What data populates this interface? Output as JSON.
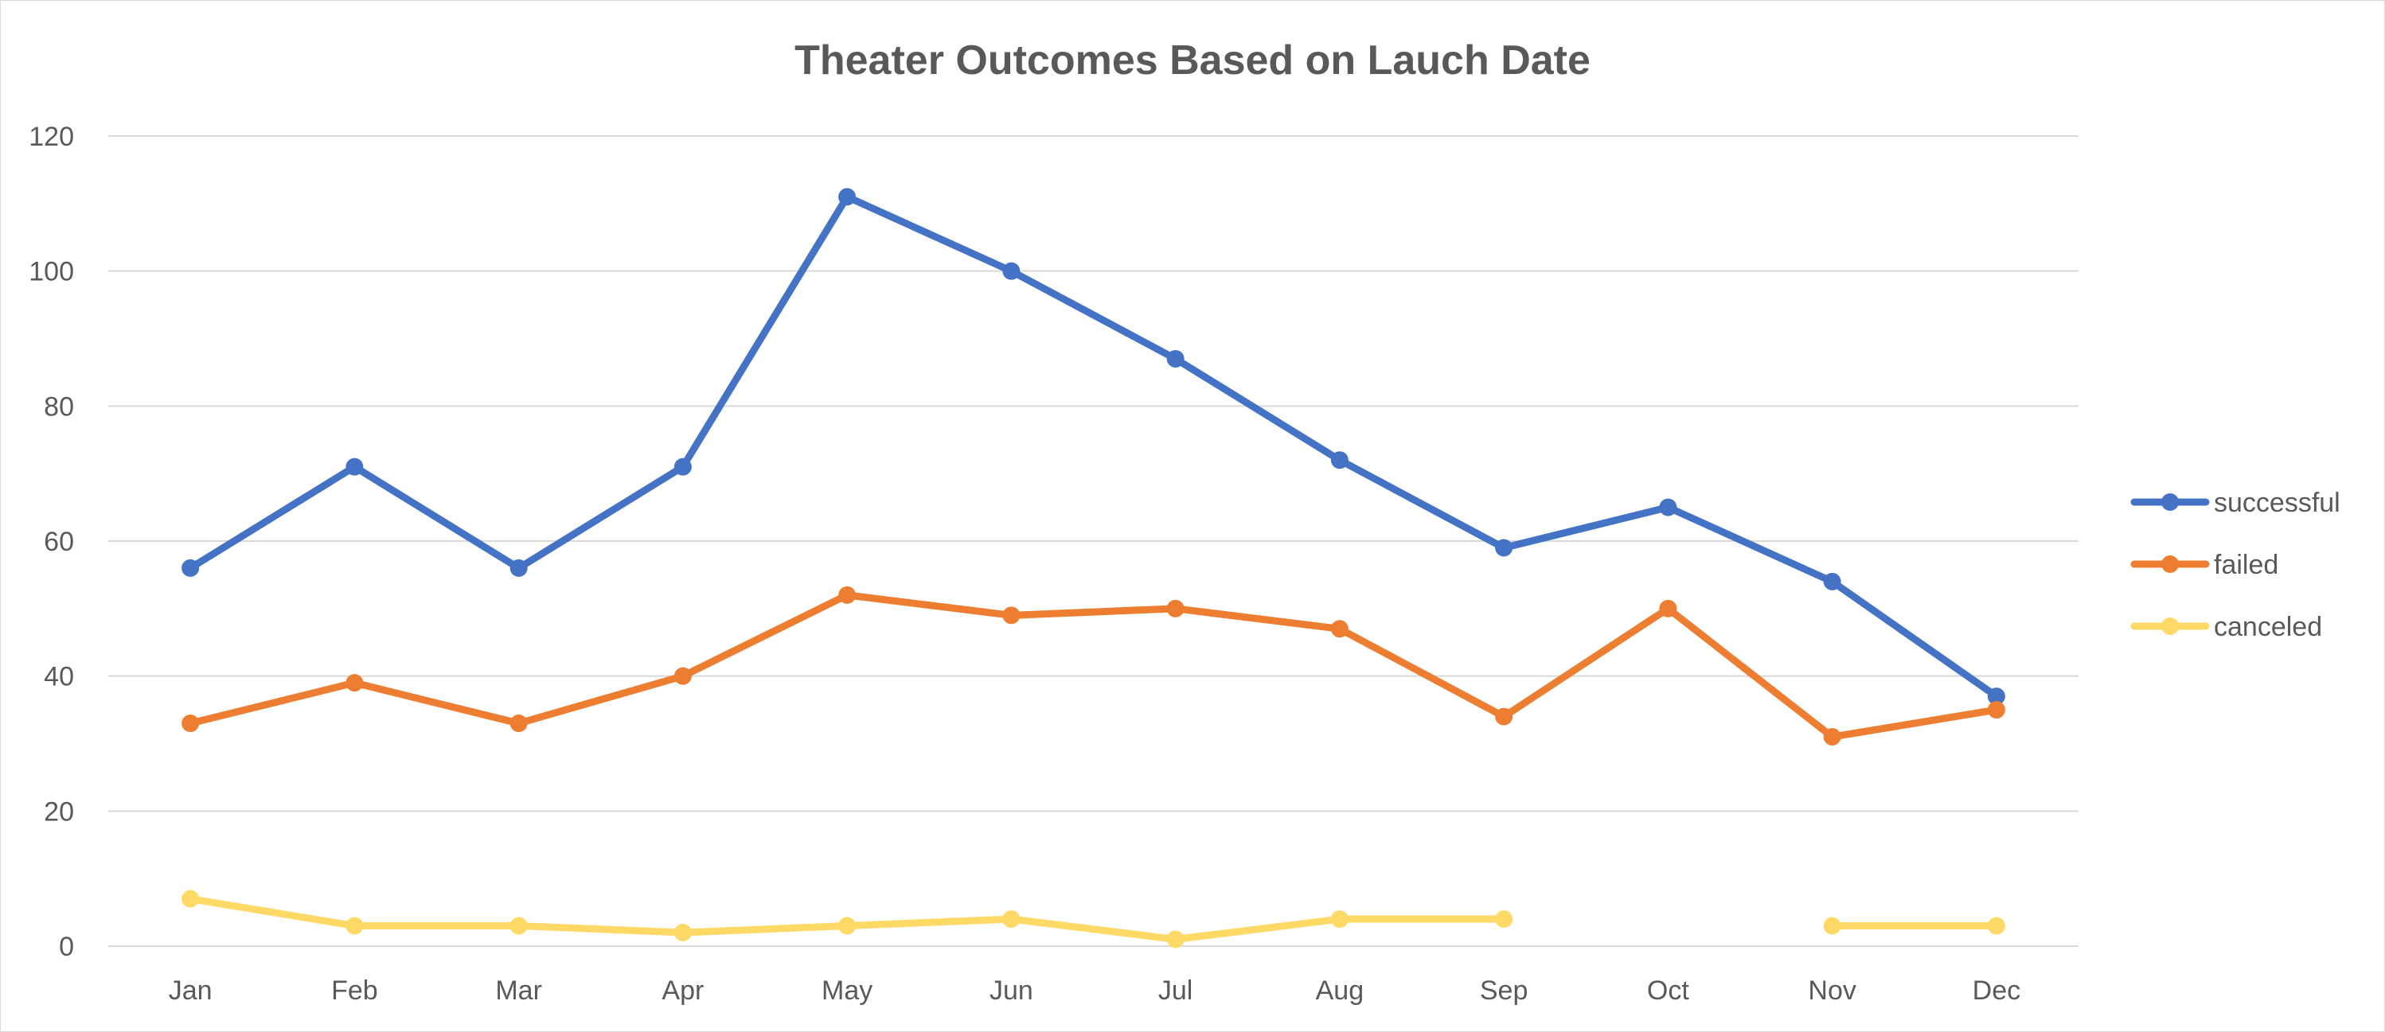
{
  "chart_data": {
    "type": "line",
    "title": "Theater Outcomes Based on Lauch Date",
    "xlabel": "",
    "ylabel": "",
    "categories": [
      "Jan",
      "Feb",
      "Mar",
      "Apr",
      "May",
      "Jun",
      "Jul",
      "Aug",
      "Sep",
      "Oct",
      "Nov",
      "Dec"
    ],
    "ylim": [
      0,
      120
    ],
    "yticks": [
      0,
      20,
      40,
      60,
      80,
      100,
      120
    ],
    "grid": true,
    "legend_position": "right",
    "series": [
      {
        "name": "successful",
        "color": "#4472C4",
        "values": [
          56,
          71,
          56,
          71,
          111,
          100,
          87,
          72,
          59,
          65,
          54,
          37
        ]
      },
      {
        "name": "failed",
        "color": "#ED7D31",
        "values": [
          33,
          39,
          33,
          40,
          52,
          49,
          50,
          47,
          34,
          50,
          31,
          35
        ]
      },
      {
        "name": "canceled",
        "color": "#FFD966",
        "values": [
          7,
          3,
          3,
          2,
          3,
          4,
          1,
          4,
          4,
          null,
          3,
          3
        ]
      }
    ]
  }
}
